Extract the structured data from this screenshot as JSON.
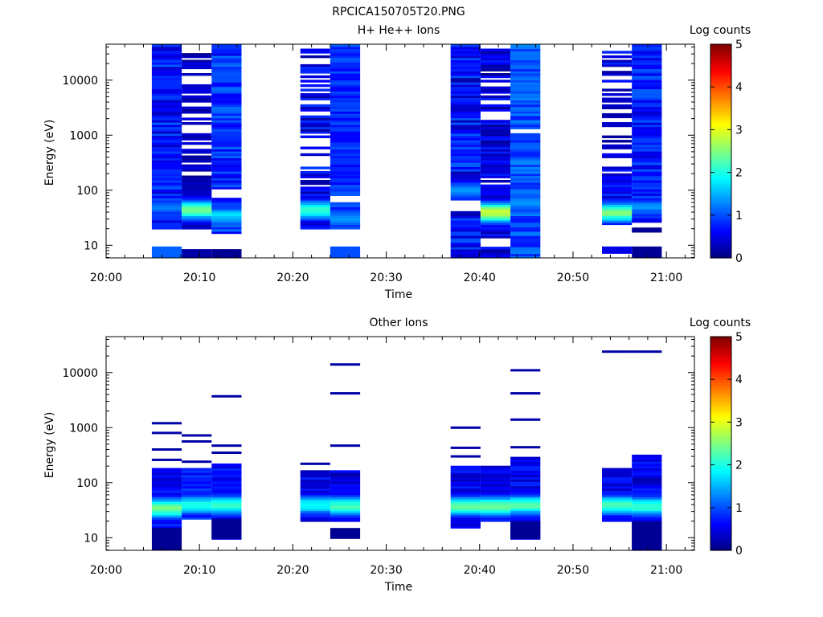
{
  "figure_title": "RPCICA150705T20.PNG",
  "chart_data": [
    {
      "type": "heatmap",
      "title": "H+ He++ Ions",
      "xlabel": "Time",
      "ylabel": "Energy (eV)",
      "colorbar_label": "Log counts",
      "colorbar_ticks": [
        "0",
        "1",
        "2",
        "3",
        "4",
        "5"
      ],
      "colorbar_range": [
        0,
        5
      ],
      "x_ticks": [
        "20:00",
        "20:10",
        "20:20",
        "20:30",
        "20:40",
        "20:50",
        "21:00"
      ],
      "y_ticks": [
        "10",
        "100",
        "1000",
        "10000"
      ],
      "x_range_minutes": [
        0,
        63
      ],
      "y_scale": "log",
      "y_range_ev": [
        5.9,
        45000
      ],
      "sweeps": [
        {
          "t0": 4.9,
          "t1": 8.1,
          "low": 20,
          "high": 45000,
          "fill": {
            "lo": 0.3,
            "hi": 1.1,
            "peak": 1.1,
            "peak_at": 50
          },
          "gaps": [
            [
              10,
              20
            ]
          ],
          "bottom": [
            {
              "from": 6,
              "to": 9.5,
              "val": 1.1
            }
          ]
        },
        {
          "t0": 8.1,
          "t1": 11.3,
          "low": 20,
          "high": 32000,
          "fill": {
            "lo": 0.1,
            "hi": 0.5,
            "peak": 2.3,
            "peak_at": 45
          },
          "gaps": [
            [
              8.5,
              20
            ]
          ],
          "gap_rows": 0.38,
          "bottom": [
            {
              "from": 6,
              "to": 8.5,
              "val": 0.2
            }
          ]
        },
        {
          "t0": 11.3,
          "t1": 14.5,
          "low": 16,
          "high": 45000,
          "fill": {
            "lo": 0.5,
            "hi": 1.2,
            "peak": 1.6,
            "peak_at": 35
          },
          "gaps": [
            [
              8.5,
              16
            ],
            [
              70,
              110
            ]
          ],
          "bottom": [
            {
              "from": 6,
              "to": 8.5,
              "val": 0.1
            }
          ]
        },
        {
          "t0": 20.8,
          "t1": 24.0,
          "low": 20,
          "high": 36000,
          "fill": {
            "lo": 0.1,
            "hi": 0.9,
            "peak": 2.0,
            "peak_at": 45
          },
          "gap_rows": 0.45,
          "gaps": []
        },
        {
          "t0": 24.0,
          "t1": 27.2,
          "low": 20,
          "high": 45000,
          "fill": {
            "lo": 0.6,
            "hi": 1.1,
            "peak": 1.3,
            "peak_at": 30
          },
          "gaps": [
            [
              9.5,
              20
            ],
            [
              60,
              80
            ]
          ],
          "bottom": [
            {
              "from": 6,
              "to": 9.5,
              "val": 1.0
            }
          ]
        },
        {
          "t0": 36.9,
          "t1": 40.1,
          "low": 6,
          "high": 45000,
          "fill": {
            "lo": 0.2,
            "hi": 1.1,
            "peak": 1.3,
            "peak_at": 100
          },
          "gaps": [
            [
              40,
              65
            ]
          ]
        },
        {
          "t0": 40.1,
          "t1": 43.3,
          "low": 6,
          "high": 38000,
          "fill": {
            "lo": 0.1,
            "hi": 0.8,
            "peak": 2.8,
            "peak_at": 40
          },
          "gaps": [
            [
              9,
              14
            ]
          ],
          "gap_rows": 0.25
        },
        {
          "t0": 43.3,
          "t1": 46.5,
          "low": 6,
          "high": 45000,
          "fill": {
            "lo": 0.7,
            "hi": 1.3,
            "peak": 1.3,
            "peak_at": 60
          },
          "gaps": [
            [
              1100,
              1300
            ]
          ]
        },
        {
          "t0": 53.1,
          "t1": 56.3,
          "low": 23,
          "high": 45000,
          "fill": {
            "lo": 0.1,
            "hi": 0.9,
            "peak": 2.4,
            "peak_at": 40
          },
          "gaps": [
            [
              13,
              23
            ]
          ],
          "gap_rows": 0.4,
          "bottom": [
            {
              "from": 7,
              "to": 9.5,
              "val": 0.5
            }
          ]
        },
        {
          "t0": 56.3,
          "t1": 59.5,
          "low": 26,
          "high": 45000,
          "fill": {
            "lo": 0.4,
            "hi": 1.1,
            "peak": 1.2,
            "peak_at": 50
          },
          "gaps": [
            [
              9.5,
              17
            ]
          ],
          "bottom": [
            {
              "from": 6,
              "to": 9.5,
              "val": 0.1
            },
            {
              "from": 17,
              "to": 21,
              "val": 0.1
            }
          ]
        }
      ]
    },
    {
      "type": "heatmap",
      "title": "Other Ions",
      "xlabel": "Time",
      "ylabel": "Energy (eV)",
      "colorbar_label": "Log counts",
      "colorbar_ticks": [
        "0",
        "1",
        "2",
        "3",
        "4",
        "5"
      ],
      "colorbar_range": [
        0,
        5
      ],
      "x_ticks": [
        "20:00",
        "20:10",
        "20:20",
        "20:30",
        "20:40",
        "20:50",
        "21:00"
      ],
      "y_ticks": [
        "10",
        "100",
        "1000",
        "10000"
      ],
      "x_range_minutes": [
        0,
        63
      ],
      "y_scale": "log",
      "y_range_ev": [
        5.9,
        45000
      ],
      "sweeps": [
        {
          "t0": 4.9,
          "t1": 8.1,
          "low": 15,
          "high": 190,
          "fill": {
            "lo": 0.4,
            "hi": 0.9,
            "peak": 2.4,
            "peak_at": 35
          },
          "gaps": [],
          "bottom": [
            {
              "from": 6,
              "to": 15,
              "val": 0.1
            }
          ],
          "lines": [
            {
              "e": 260,
              "val": 0.2
            },
            {
              "e": 400,
              "val": 0.2
            },
            {
              "e": 800,
              "val": 0.2
            },
            {
              "e": 1200,
              "val": 0.2
            }
          ]
        },
        {
          "t0": 8.1,
          "t1": 11.3,
          "low": 22,
          "high": 190,
          "fill": {
            "lo": 0.5,
            "hi": 1.0,
            "peak": 1.9,
            "peak_at": 40
          },
          "gaps": [],
          "lines": [
            {
              "e": 240,
              "val": 0.2
            },
            {
              "e": 560,
              "val": 0.2
            },
            {
              "e": 720,
              "val": 0.2
            }
          ]
        },
        {
          "t0": 11.3,
          "t1": 14.5,
          "low": 9.5,
          "high": 230,
          "fill": {
            "lo": 0.4,
            "hi": 0.9,
            "peak": 2.0,
            "peak_at": 40
          },
          "gaps": [],
          "bottom": [
            {
              "from": 9.5,
              "to": 22,
              "val": 0.1
            }
          ],
          "lines": [
            {
              "e": 350,
              "val": 0.2
            },
            {
              "e": 470,
              "val": 0.2
            },
            {
              "e": 3700,
              "val": 0.2
            }
          ]
        },
        {
          "t0": 20.8,
          "t1": 24.0,
          "low": 20,
          "high": 170,
          "fill": {
            "lo": 0.3,
            "hi": 0.8,
            "peak": 1.8,
            "peak_at": 40
          },
          "gaps": [],
          "lines": [
            {
              "e": 220,
              "val": 0.2
            }
          ]
        },
        {
          "t0": 24.0,
          "t1": 27.2,
          "low": 20,
          "high": 170,
          "fill": {
            "lo": 0.2,
            "hi": 0.8,
            "peak": 2.1,
            "peak_at": 38
          },
          "gaps": [],
          "bottom": [
            {
              "from": 9.5,
              "to": 15,
              "val": 0.1
            }
          ],
          "lines": [
            {
              "e": 470,
              "val": 0.2
            },
            {
              "e": 4200,
              "val": 0.2
            },
            {
              "e": 14000,
              "val": 0.2
            }
          ]
        },
        {
          "t0": 36.9,
          "t1": 40.1,
          "low": 15,
          "high": 210,
          "fill": {
            "lo": 0.2,
            "hi": 0.8,
            "peak": 2.3,
            "peak_at": 38
          },
          "gaps": [],
          "lines": [
            {
              "e": 300,
              "val": 0.2
            },
            {
              "e": 430,
              "val": 0.2
            },
            {
              "e": 1000,
              "val": 0.2
            }
          ]
        },
        {
          "t0": 40.1,
          "t1": 43.3,
          "low": 20,
          "high": 210,
          "fill": {
            "lo": 0.3,
            "hi": 0.8,
            "peak": 2.3,
            "peak_at": 38
          },
          "gaps": []
        },
        {
          "t0": 43.3,
          "t1": 46.5,
          "low": 9.5,
          "high": 300,
          "fill": {
            "lo": 0.3,
            "hi": 0.9,
            "peak": 2.2,
            "peak_at": 40
          },
          "gaps": [],
          "bottom": [
            {
              "from": 9.5,
              "to": 20,
              "val": 0.1
            }
          ],
          "lines": [
            {
              "e": 440,
              "val": 0.2
            },
            {
              "e": 1400,
              "val": 0.2
            },
            {
              "e": 4200,
              "val": 0.2
            },
            {
              "e": 11000,
              "val": 0.2
            }
          ]
        },
        {
          "t0": 53.1,
          "t1": 56.3,
          "low": 20,
          "high": 190,
          "fill": {
            "lo": 0.3,
            "hi": 0.8,
            "peak": 2.1,
            "peak_at": 40
          },
          "gaps": [],
          "lines": [
            {
              "e": 24000,
              "val": 0.2
            }
          ]
        },
        {
          "t0": 56.3,
          "t1": 59.5,
          "low": 6,
          "high": 320,
          "fill": {
            "lo": 0.2,
            "hi": 0.8,
            "peak": 2.1,
            "peak_at": 38
          },
          "gaps": [],
          "bottom": [
            {
              "from": 6,
              "to": 20,
              "val": 0.1
            }
          ],
          "lines": [
            {
              "e": 24000,
              "val": 0.2
            }
          ]
        }
      ]
    }
  ]
}
